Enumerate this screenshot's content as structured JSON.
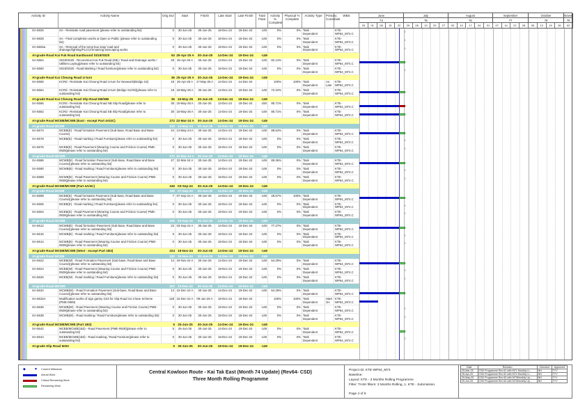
{
  "columns": {
    "id": "Activity ID",
    "name": "Activity Name",
    "dur": "Orig Dur",
    "start": "Start",
    "finish": "Finish",
    "lstart": "Late Start",
    "lfinish": "Late Finish",
    "tf": "Total Float",
    "act": "Activity % Complete",
    "phys": "Physical % Complete",
    "type": "Activity Type",
    "cons": "Primary Constraint",
    "wbs": "WBS"
  },
  "timeline": {
    "data_date": "25-Jun-25",
    "months": [
      {
        "label": "June",
        "num": "74"
      },
      {
        "label": "July",
        "num": "75"
      },
      {
        "label": "August",
        "num": "76"
      },
      {
        "label": "September",
        "num": "77"
      },
      {
        "label": "October",
        "num": "78"
      },
      {
        "label": "Novem",
        "num": "79"
      }
    ],
    "weeks": [
      "25",
      "01",
      "08",
      "15",
      "22",
      "29",
      "06",
      "13",
      "20",
      "27",
      "03",
      "10",
      "17",
      "24",
      "31",
      "07",
      "14",
      "21",
      "28",
      "05",
      "12",
      "19",
      "26",
      "02"
    ]
  },
  "colors": {
    "actual": "#0010c0",
    "remaining": "#7ad67a",
    "critical": "#e01010",
    "band": "#ffff99",
    "subband": "#9fcfd4"
  },
  "rows": [
    {
      "k": "d",
      "id": "SA-5826",
      "name": "SA - Reinstate road pavement (please refer to outstanding list)",
      "dur": "0",
      "start": "30-Jun-25",
      "finish": "30-Jun-25",
      "lstart": "18-Dec-24",
      "lfinish": "18-Dec-24",
      "tf": "-149",
      "act": "0%",
      "phys": "0%",
      "type": "Task Dependent",
      "cons": "",
      "wbs": "KTE-WP64_M74.C"
    },
    {
      "k": "d",
      "id": "SA-5828",
      "name": "SA - Final completion works & Open to Public (please refer to outstanding list)",
      "dur": "0",
      "start": "30-Jun-25",
      "finish": "30-Jun-25",
      "lstart": "18-Dec-24",
      "lfinish": "18-Dec-24",
      "tf": "-149",
      "act": "0%",
      "phys": "0%",
      "type": "Task Dependent",
      "cons": "",
      "wbs": "KTE-WP64_M74.C"
    },
    {
      "k": "d",
      "id": "SA-5826a",
      "name": "SA - Removal of the temp bus stop/ road and drainage/lighting/PLCC/remaining lanscaping works",
      "dur": "0",
      "start": "30-Jun-25",
      "finish": "30-Jun-25",
      "lstart": "18-Dec-24",
      "lfinish": "18-Dec-24",
      "tf": "-149",
      "act": "0%",
      "phys": "0%",
      "type": "Task Dependent",
      "cons": "",
      "wbs": "KTE-WP64_M74.C"
    },
    {
      "k": "b",
      "name": "At-grade Road Kai Fuk Road Eastbound S019/S020",
      "dur": "53",
      "start": "25-Apr-25 A",
      "finish": "30-Jun-25",
      "lstart": "14-Dec-24",
      "lfinish": "19-Dec-24",
      "tf": "-149"
    },
    {
      "k": "d",
      "id": "SA-5554",
      "name": "S019/S020 - Reconstruct Kai Fuk Road (EB) / Road and Drainage works / Utilities Laying(please refer to outstanding list)",
      "dur": "28",
      "start": "25-Apr-25 A",
      "finish": "30-Jun-25",
      "lstart": "14-Dec-24",
      "lfinish": "19-Dec-24",
      "tf": "-149",
      "act": "82.14%",
      "phys": "0%",
      "type": "Task Dependent",
      "cons": "",
      "wbs": "KTE-WP64_M74.C"
    },
    {
      "k": "d",
      "id": "SA-5560",
      "name": "S019/S020 - Road Marking / Road furniture(please refer to outstanding list)",
      "dur": "0",
      "start": "30-Jun-25",
      "finish": "30-Jun-25",
      "lstart": "18-Dec-24",
      "lfinish": "18-Dec-24",
      "tf": "-149",
      "act": "0%",
      "phys": "0%",
      "type": "Task Dependent",
      "cons": "",
      "wbs": "KTE-WP64_M74.C"
    },
    {
      "k": "b",
      "name": "At-grade Road Kai Cheung Road U-turn",
      "dur": "36",
      "start": "25-Apr-25 A",
      "finish": "30-Jun-25",
      "lstart": "14-Dec-24",
      "lfinish": "19-Dec-24",
      "tf": "-149"
    },
    {
      "k": "d",
      "id": "SA-5565",
      "name": "KCRd - Reinstate Kai Cheung Road U-turn for Newwork(Bridge S2)",
      "dur": "18",
      "start": "25-Apr-25 A",
      "finish": "17-May-25 A",
      "lstart": "14-Dec-24",
      "lfinish": "14-Dec-24",
      "tf": "",
      "act": "100%",
      "phys": "100%",
      "type": "Task Dependent",
      "cons": "As Late",
      "wbs": "KTE-WP64_M74.C"
    },
    {
      "k": "d",
      "id": "SA-5564",
      "name": "KCRd - Reinstate Kai Cheung Road U-turn (Bridge S1/S9)(please refer to outstanding list)",
      "dur": "18",
      "start": "19-May-25 A",
      "finish": "30-Jun-25",
      "lstart": "14-Dec-24",
      "lfinish": "19-Dec-24",
      "tf": "-149",
      "act": "72.22%",
      "phys": "0%",
      "type": "Task Dependent",
      "cons": "",
      "wbs": "KTE-WP64_M74.C"
    },
    {
      "k": "b",
      "name": "At-grade Road Kai Cheung Road Slip Road EB/WB",
      "dur": "35",
      "start": "15-May-25 A",
      "finish": "30-Jun-25",
      "lstart": "13-Dec-24",
      "lfinish": "19-Dec-24",
      "tf": "-149"
    },
    {
      "k": "d",
      "id": "SA-5566",
      "name": "KCRd - Reinstate Kai Cheung Road NB Slip Road(please refer to outstanding list)",
      "dur": "35",
      "start": "15-May-25 A",
      "finish": "30-Jun-25",
      "lstart": "13-Dec-24",
      "lfinish": "18-Dec-24",
      "tf": "-150",
      "act": "85.71%",
      "phys": "0%",
      "type": "Task Dependent",
      "cons": "",
      "wbs": "KTE-WP64_M74.C",
      "critical": true
    },
    {
      "k": "d",
      "id": "SA-5562",
      "name": "KCRd - Reinstate Kai Cheung Road SB Slip Road(please refer to outstanding list)",
      "dur": "35",
      "start": "15-May-25 A",
      "finish": "30-Jun-25",
      "lstart": "14-Dec-24",
      "lfinish": "19-Dec-24",
      "tf": "-149",
      "act": "85.71%",
      "phys": "0%",
      "type": "Task Dependent",
      "cons": "",
      "wbs": "KTE-WP64_M74.C"
    },
    {
      "k": "b",
      "name": "At-grade Road MCEB/MCWB (East - except Part 4A/4C)",
      "dur": "272",
      "start": "22-Mar-24 A",
      "finish": "30-Jun-25",
      "lstart": "14-Dec-24",
      "lfinish": "19-Dec-24",
      "tf": "-149"
    },
    {
      "k": "t",
      "name": "At-grade Road MCEB",
      "dur": "233",
      "start": "14-May-24 A",
      "finish": "30-Jun-25",
      "lstart": "14-Dec-24",
      "lfinish": "19-Dec-24",
      "tf": "-149"
    },
    {
      "k": "d",
      "id": "SA-5574",
      "name": "MCEB(E) - Road formation Pavement (Sub-base, Road Base and Base Course)",
      "dur": "44",
      "start": "14-May-24 A",
      "finish": "30-Jun-25",
      "lstart": "14-Dec-24",
      "lfinish": "19-Dec-24",
      "tf": "-149",
      "act": "88.64%",
      "phys": "0%",
      "type": "Task Dependent",
      "cons": "",
      "wbs": "KTE-WP64_M74.C"
    },
    {
      "k": "d",
      "id": "SA-5578",
      "name": "MCEB(E) - Road marking / Road Furniture(please refer to outstanding list)",
      "dur": "0",
      "start": "30-Jun-25",
      "finish": "30-Jun-25",
      "lstart": "18-Dec-24",
      "lfinish": "18-Dec-24",
      "tf": "-149",
      "act": "0%",
      "phys": "0%",
      "type": "Task Dependent",
      "cons": "",
      "wbs": "KTE-WP64_M74.C"
    },
    {
      "k": "d",
      "id": "SA-5576",
      "name": "MCEB(E) - Road Pavement (Wearing Course and Friction Course) PME-0929(please refer to outstanding list)",
      "dur": "0",
      "start": "30-Jun-25",
      "finish": "30-Jun-25",
      "lstart": "18-Dec-24",
      "lfinish": "18-Dec-24",
      "tf": "-149",
      "act": "0%",
      "phys": "0%",
      "type": "Task Dependent",
      "cons": "",
      "wbs": "KTE-WP64_M74.C"
    },
    {
      "k": "t",
      "name": "At-grade Road MCWB",
      "dur": "272",
      "start": "22-Mar-24 A",
      "finish": "30-Jun-25",
      "lstart": "14-Dec-24",
      "lfinish": "19-Dec-24",
      "tf": "-149"
    },
    {
      "k": "d",
      "id": "SA-5586",
      "name": "MCWB(E) - Road formation Pavement (Sub-base, Road Base and Base Course)(please refer to outstanding list)",
      "dur": "47",
      "start": "22-Mar-24 A",
      "finish": "30-Jun-25",
      "lstart": "14-Dec-24",
      "lfinish": "19-Dec-24",
      "tf": "-149",
      "act": "89.36%",
      "phys": "0%",
      "type": "Task Dependent",
      "cons": "",
      "wbs": "KTE-WP64_M74.C"
    },
    {
      "k": "d",
      "id": "SA-5590",
      "name": "MCWB(E) - Road marking / Road Furniture(please refer to outstanding list)",
      "dur": "0",
      "start": "30-Jun-25",
      "finish": "30-Jun-25",
      "lstart": "18-Dec-24",
      "lfinish": "18-Dec-24",
      "tf": "-149",
      "act": "0%",
      "phys": "0%",
      "type": "Task Dependent",
      "cons": "",
      "wbs": "KTE-WP64_M74.C"
    },
    {
      "k": "d",
      "id": "SA-5588",
      "name": "MCWB(E) - Road Pavement (Wearing Course and Friction Course) PME-0929(please refer to outstanding list)",
      "dur": "0",
      "start": "30-Jun-25",
      "finish": "30-Jun-25",
      "lstart": "18-Dec-24",
      "lfinish": "18-Dec-24",
      "tf": "-149",
      "act": "0%",
      "phys": "0%",
      "type": "Task Dependent",
      "cons": "",
      "wbs": "KTE-WP64_M74.C"
    },
    {
      "k": "b",
      "name": "At-grade Road MCEB/MCWB (Part 4A/4C)",
      "dur": "245",
      "start": "03-Sep-24 A",
      "finish": "30-Jun-25",
      "lstart": "14-Dec-24",
      "lfinish": "19-Dec-24",
      "tf": "-149"
    },
    {
      "k": "t",
      "name": "At-grade Road MCEB",
      "dur": "245",
      "start": "07-Sep-24 A",
      "finish": "30-Jun-25",
      "lstart": "14-Dec-24",
      "lfinish": "19-Dec-24",
      "tf": "-149"
    },
    {
      "k": "d",
      "id": "SA-5598",
      "name": "MCEB(E) - Road formation Pavement (Sub-base, Road Base and Base Course)(please refer to outstanding list)",
      "dur": "7",
      "start": "07-Sep-24 A",
      "finish": "30-Jun-25",
      "lstart": "14-Dec-24",
      "lfinish": "19-Dec-24",
      "tf": "-149",
      "act": "28.57%",
      "phys": "100%",
      "type": "Task Dependent",
      "cons": "",
      "wbs": "KTE-WP64_M74.C"
    },
    {
      "k": "d",
      "id": "SA-5606",
      "name": "MCEB(E) - Road marking / Road Furniture(please refer to outstanding list)",
      "dur": "0",
      "start": "30-Jun-25",
      "finish": "30-Jun-25",
      "lstart": "18-Dec-24",
      "lfinish": "18-Dec-24",
      "tf": "-149",
      "act": "0%",
      "phys": "0%",
      "type": "Task Dependent",
      "cons": "",
      "wbs": "KTE-WP64_M74.C"
    },
    {
      "k": "d",
      "id": "SA-5604",
      "name": "MCEB(E) - Road Pavement (Wearing Course and Friction Course) PME-0929(please refer to outstanding list)",
      "dur": "0",
      "start": "30-Jun-25",
      "finish": "30-Jun-25",
      "lstart": "19-Dec-24",
      "lfinish": "19-Dec-24",
      "tf": "-148",
      "act": "0%",
      "phys": "0%",
      "type": "Task Dependent",
      "cons": "",
      "wbs": "KTE-WP64_M74.C"
    },
    {
      "k": "t",
      "name": "At-grade Road MCWB",
      "dur": "235",
      "start": "03-Sep-24 A",
      "finish": "30-Jun-25",
      "lstart": "14-Dec-24",
      "lfinish": "19-Dec-24",
      "tf": "-149"
    },
    {
      "k": "d",
      "id": "SA-5612",
      "name": "MCWB(E) - Road formation Pavement (Sub-base, Road Base and Base Course)(please refer to outstanding list)",
      "dur": "22",
      "start": "03-Sep-24 A",
      "finish": "30-Jun-25",
      "lstart": "14-Dec-24",
      "lfinish": "19-Dec-24",
      "tf": "-149",
      "act": "77.27%",
      "phys": "0%",
      "type": "Task Dependent",
      "cons": "",
      "wbs": "KTE-WP64_M74.C"
    },
    {
      "k": "d",
      "id": "SA-5616",
      "name": "MCWB(E) - Road marking / Road Furniture(please refer to outstanding list)",
      "dur": "0",
      "start": "30-Jun-25",
      "finish": "30-Jun-25",
      "lstart": "18-Dec-24",
      "lfinish": "18-Dec-24",
      "tf": "-149",
      "act": "0%",
      "phys": "0%",
      "type": "Task Dependent",
      "cons": "",
      "wbs": "KTE-WP64_M74.C"
    },
    {
      "k": "d",
      "id": "SA-5614",
      "name": "MCWB(E) - Road Pavement (Wearing Course and Friction Course) PME-0929(please refer to outstanding list)",
      "dur": "0",
      "start": "30-Jun-25",
      "finish": "30-Jun-25",
      "lstart": "18-Dec-24",
      "lfinish": "18-Dec-24",
      "tf": "-149",
      "act": "0%",
      "phys": "0%",
      "type": "Task Dependent",
      "cons": "",
      "wbs": "KTE-WP64_M74.C"
    },
    {
      "k": "b",
      "name": "At-grade Road MCEB/MCWB (West - except Part 1B3)",
      "dur": "224",
      "start": "19-Nov-24 A",
      "finish": "30-Jun-25",
      "lstart": "14-Dec-24",
      "lfinish": "19-Dec-24",
      "tf": "-149"
    },
    {
      "k": "t",
      "name": "At-grade Road MCEB",
      "dur": "182",
      "start": "19-Nov-24 A",
      "finish": "30-Jun-25",
      "lstart": "14-Dec-24",
      "lfinish": "19-Dec-24",
      "tf": "-149"
    },
    {
      "k": "d",
      "id": "SA-5622",
      "name": "MCEB(W) - Road Formation Pavement (Sub-base, Road Base and Base Course)(please refer to outstanding list)",
      "dur": "14",
      "start": "19-Nov-24 A",
      "finish": "30-Jun-25",
      "lstart": "14-Dec-24",
      "lfinish": "19-Dec-24",
      "tf": "-149",
      "act": "64.29%",
      "phys": "0%",
      "type": "Task Dependent",
      "cons": "",
      "wbs": "KTE-WP64_M74.C"
    },
    {
      "k": "d",
      "id": "SA-5624",
      "name": "MCEB(W) - Road Pavement (Wearing Course and Friction Course) PME-0929(please refer to outstanding list)",
      "dur": "0",
      "start": "30-Jun-25",
      "finish": "30-Jun-25",
      "lstart": "19-Dec-24",
      "lfinish": "19-Dec-24",
      "tf": "-148",
      "act": "0%",
      "phys": "0%",
      "type": "Task Dependent",
      "cons": "",
      "wbs": "KTE-WP64_M74.C"
    },
    {
      "k": "d",
      "id": "SA-5626",
      "name": "MCEB(W) - Road marking / Road Furniture(please refer to outstanding list)",
      "dur": "0",
      "start": "30-Jun-25",
      "finish": "30-Jun-25",
      "lstart": "18-Dec-24",
      "lfinish": "18-Dec-24",
      "tf": "-149",
      "act": "0%",
      "phys": "0%",
      "type": "Task Dependent",
      "cons": "",
      "wbs": "KTE-WP64_M74.C"
    },
    {
      "k": "t",
      "name": "At-grade Road MCWB",
      "dur": "202",
      "start": "10-Dec-24 A",
      "finish": "30-Jun-25",
      "lstart": "14-Dec-24",
      "lfinish": "19-Dec-24",
      "tf": "-149"
    },
    {
      "k": "d",
      "id": "SA-5634",
      "name": "MCWB(W) - Road Formation Pavement (Sub-base, Road Base and Base Course)(please refer to outstanding list)",
      "dur": "14",
      "start": "10-Dec-24 A",
      "finish": "30-Jun-25",
      "lstart": "14-Dec-24",
      "lfinish": "19-Dec-24",
      "tf": "-149",
      "act": "64.29%",
      "phys": "0%",
      "type": "Task Dependent",
      "cons": "",
      "wbs": "KTE-WP64_M74.C"
    },
    {
      "k": "d",
      "id": "SA-5632A",
      "name": "Modification works of sign gantry G23 for Slip Road S4 2-lane Scheme (PME-0909)",
      "dur": "128",
      "start": "16-Dec-24 A",
      "finish": "09-Jun-25 A",
      "lstart": "18-Dec-24",
      "lfinish": "18-Dec-24",
      "tf": "",
      "act": "100%",
      "phys": "100%",
      "type": "Task Dependent",
      "cons": "Start On",
      "wbs": "KTE-WP64_M74.C"
    },
    {
      "k": "d",
      "id": "SA-5636",
      "name": "MCWB(W) - Road Pavement (Wearing Course and Friction Course) PME-0929(please refer to outstanding list)",
      "dur": "0",
      "start": "30-Jun-25",
      "finish": "30-Jun-25",
      "lstart": "19-Dec-24",
      "lfinish": "19-Dec-24",
      "tf": "-148",
      "act": "0%",
      "phys": "0%",
      "type": "Task Dependent",
      "cons": "",
      "wbs": "KTE-WP64_M74.C"
    },
    {
      "k": "d",
      "id": "SA-5638",
      "name": "MCWB(W) - Road marking / Road Furniture(please refer to outstanding list)",
      "dur": "0",
      "start": "30-Jun-25",
      "finish": "30-Jun-25",
      "lstart": "18-Dec-24",
      "lfinish": "18-Dec-24",
      "tf": "-149",
      "act": "0%",
      "phys": "0%",
      "type": "Task Dependent",
      "cons": "",
      "wbs": "KTE-WP64_M74.C"
    },
    {
      "k": "b",
      "name": "At-grade Road MCEB/MCWB (Part 1B3)",
      "dur": "5",
      "start": "25-Jun-25",
      "finish": "30-Jun-25",
      "lstart": "14-Dec-24",
      "lfinish": "19-Dec-24",
      "tf": "-149"
    },
    {
      "k": "d",
      "id": "SA-5642",
      "name": "MCEB/MCWB(1B3) - Road Pavement (PME-0929)(please refer to outstanding list)",
      "dur": "5",
      "start": "25-Jun-25",
      "finish": "30-Jun-25",
      "lstart": "14-Dec-24",
      "lfinish": "19-Dec-24",
      "tf": "-149",
      "act": "0%",
      "phys": "0%",
      "type": "Task Dependent",
      "cons": "",
      "wbs": "KTE-WP64_M74.C"
    },
    {
      "k": "d",
      "id": "SA-5644",
      "name": "MCEB/MCWB(1B3) - Road marking / Road Furniture(please refer to outstanding list)",
      "dur": "0",
      "start": "30-Jun-25",
      "finish": "30-Jun-25",
      "lstart": "18-Dec-24",
      "lfinish": "18-Dec-24",
      "tf": "-149",
      "act": "0%",
      "phys": "0%",
      "type": "Task Dependent",
      "cons": "",
      "wbs": "KTE-WP64_M74.C"
    },
    {
      "k": "b",
      "name": "At-grade Slip Road 5003",
      "dur": "0",
      "start": "30-Jun-25",
      "finish": "30-Jun-25",
      "lstart": "18-Dec-24",
      "lfinish": "18-Dec-24",
      "tf": "-149"
    }
  ],
  "legend": {
    "milestone": "Current Milestone",
    "actual": "Actual Work",
    "critical": "Critical Remaining Work",
    "remaining": "Remaining Work"
  },
  "title": {
    "line1": "Central Kowloon Route - Kai Tak East (Month 74 Update) (Rev64- CSD)",
    "line2": "Three Month Rolling Programme"
  },
  "info": {
    "project": "Project ID: KTE-WP64_M74",
    "baseline": "Baseline:",
    "layout": "Layout: KTE - 3 Months Rolling Programme",
    "filter": "Filter: TASK filters: 3 Months Rolling, 1, KTE - Submission.",
    "page": "Page 4 of 8"
  },
  "revisions": {
    "headers": [
      "Date",
      "Revision",
      "Checked",
      "Approved"
    ],
    "rows": [
      [
        "25-Mar-25",
        "CSD Programme Rev 61 with M71 Monthly U...",
        "NH",
        "TYY"
      ],
      [
        "28-Apr-25",
        "CSD Programme Rev 62 with M72 Monthly U...",
        "NH",
        "TYY"
      ],
      [
        "29-May-25",
        "CSD Programme Rev 63 with M73Monthly Up...",
        "NH",
        "TYY"
      ],
      [
        "25-Jun-25",
        "CSD Programme Rev 64 with M74Monthly Up...",
        "NH",
        "TYY"
      ]
    ]
  }
}
